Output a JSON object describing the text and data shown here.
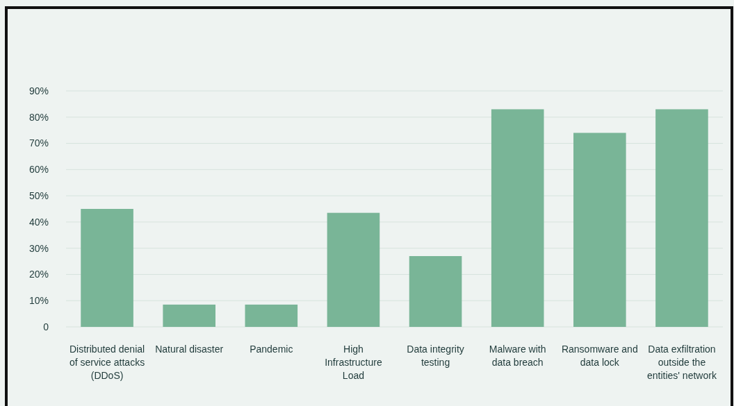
{
  "chart_data": {
    "type": "bar",
    "categories": [
      "Distributed denial of service attacks (DDoS)",
      "Natural disaster",
      "Pandemic",
      "High Infrastructure Load",
      "Data integrity testing",
      "Malware with data breach",
      "Ransomware and data lock",
      "Data exfiltration outside the entities' network"
    ],
    "values": [
      45,
      8.5,
      8.5,
      43.5,
      27,
      83,
      74,
      83
    ],
    "color": "#79b597",
    "ylim": [
      0,
      90
    ],
    "yticks": [
      0,
      {
        "value": 10,
        "label": "10%"
      },
      {
        "value": 20,
        "label": "20%"
      },
      {
        "value": 30,
        "label": "30%"
      },
      {
        "value": 40,
        "label": "40%"
      },
      {
        "value": 50,
        "label": "50%"
      },
      {
        "value": 60,
        "label": "60%"
      },
      {
        "value": 70,
        "label": "70%"
      },
      {
        "value": 80,
        "label": "80%"
      },
      {
        "value": 90,
        "label": "90%"
      }
    ],
    "grid": "y"
  }
}
